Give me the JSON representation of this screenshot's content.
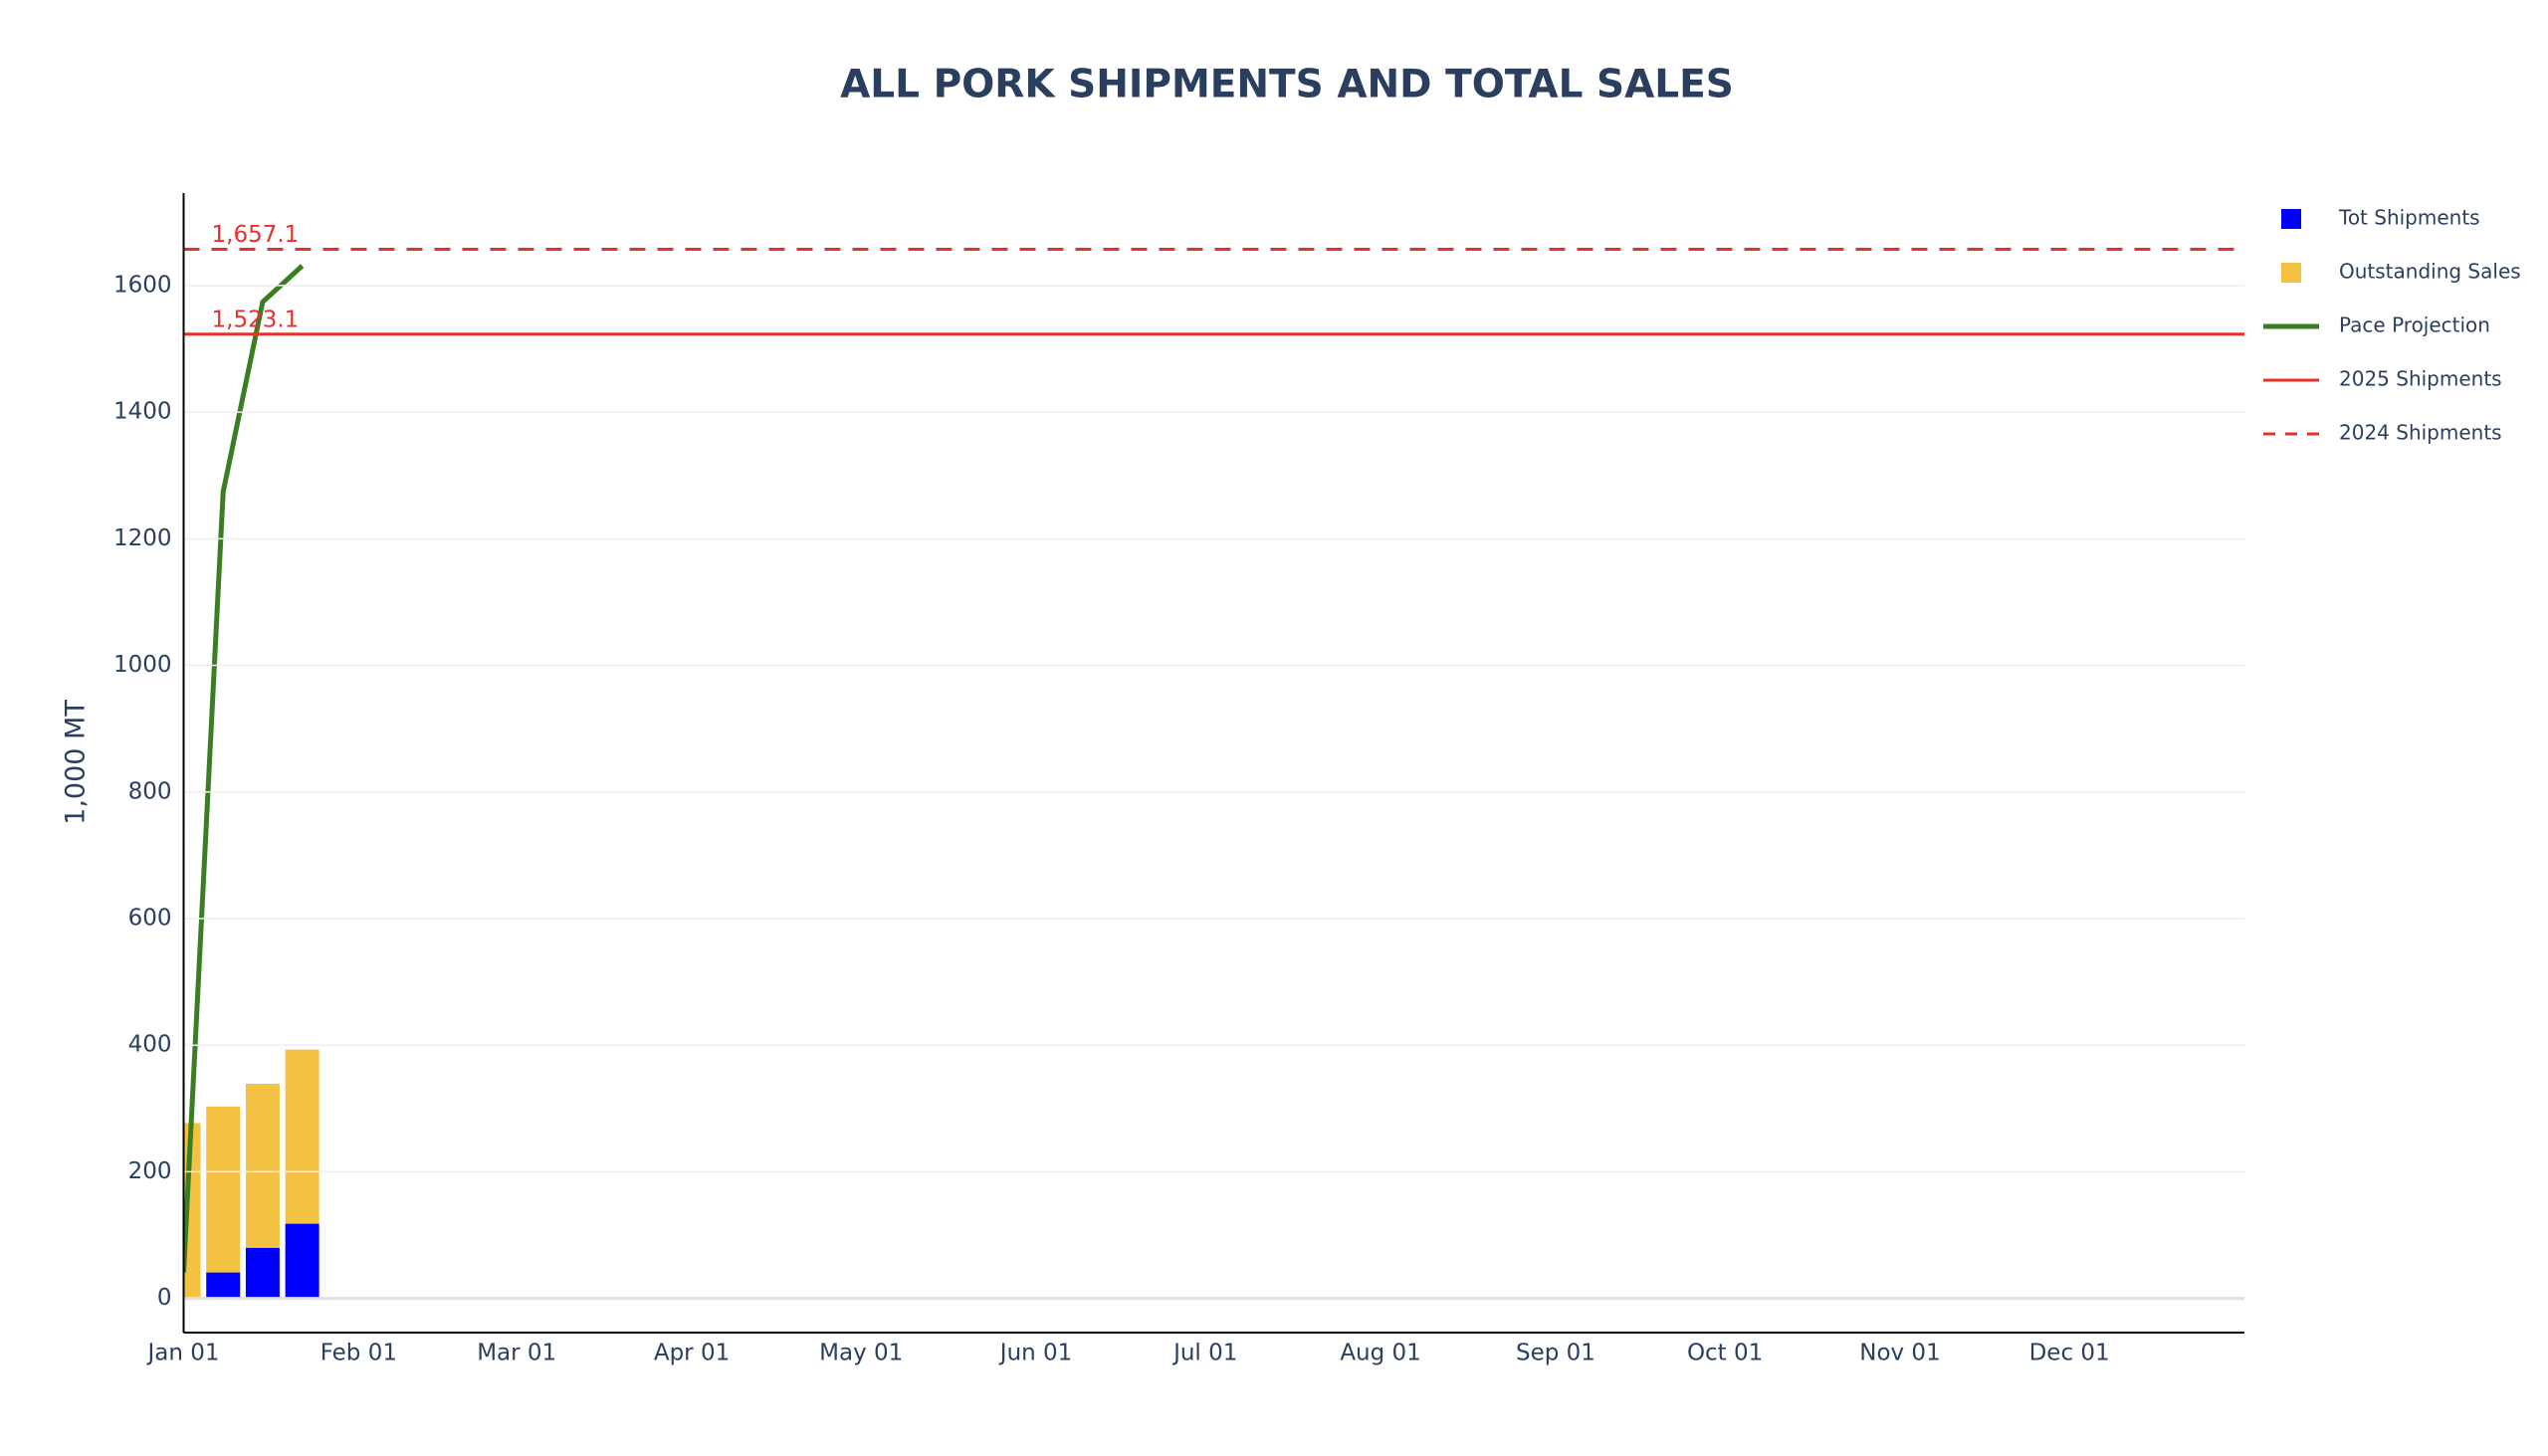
{
  "chart_data": {
    "type": "bar",
    "title": "ALL PORK SHIPMENTS AND TOTAL SALES",
    "y_label": "1,000 MT",
    "x": [
      "Jan 01",
      "Jan 08",
      "Jan 15",
      "Jan 22"
    ],
    "series": [
      {
        "name": "Tot Shipments",
        "type": "bar",
        "color": "#0000ff",
        "values": [
          0,
          41,
          80,
          118
        ]
      },
      {
        "name": "Outstanding Sales",
        "type": "bar",
        "color": "#f4c242",
        "values": [
          277,
          262,
          259,
          275
        ]
      },
      {
        "name": "Pace Projection",
        "type": "line",
        "color": "#3a7d22",
        "values": [
          41,
          1274,
          1574,
          1631
        ]
      }
    ],
    "reference_lines": [
      {
        "name": "2025 Shipments",
        "value": 1523.1,
        "label": "1,523.1",
        "color": "#e8302a",
        "dashed": false
      },
      {
        "name": "2024 Shipments",
        "value": 1657.1,
        "label": "1,657.1",
        "color": "#e8302a",
        "dashed": true
      }
    ],
    "xlim": [
      "Jan 01",
      "Dec 31"
    ],
    "xticks": [
      "Jan 01",
      "Feb 01",
      "Mar 01",
      "Apr 01",
      "May 01",
      "Jun 01",
      "Jul 01",
      "Aug 01",
      "Sep 01",
      "Oct 01",
      "Nov 01",
      "Dec 01"
    ],
    "ylim": [
      -54,
      1746
    ],
    "yticks": [
      0,
      200,
      400,
      600,
      800,
      1000,
      1200,
      1400,
      1600
    ],
    "grid": true,
    "legend": "right"
  }
}
